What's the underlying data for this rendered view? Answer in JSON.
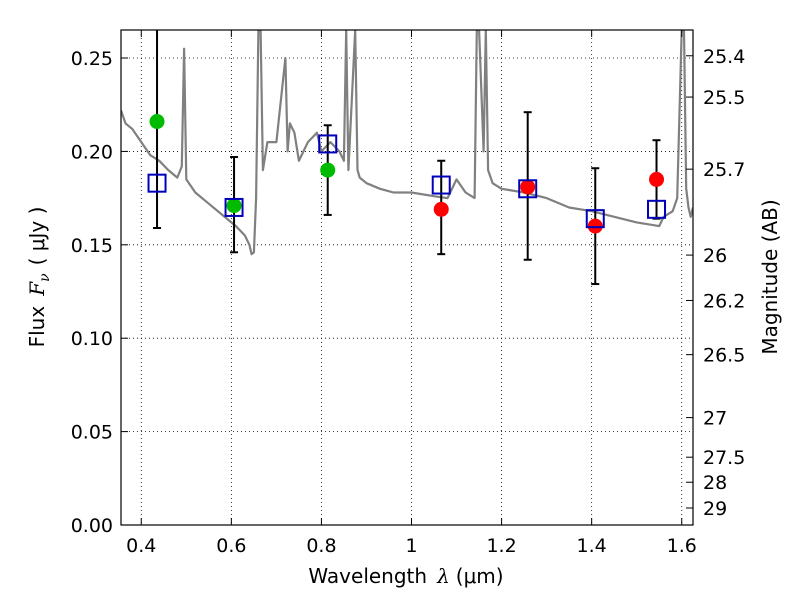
{
  "chart_data": {
    "type": "scatter",
    "xlabel": "Wavelength",
    "xlabel_symbol": "λ",
    "xlabel_unit": "(μm)",
    "ylabel": "Flux",
    "ylabel_symbol": "F",
    "ylabel_subscript": "ν",
    "ylabel_unit": "( μJy )",
    "y2label": "Magnitude (AB)",
    "xlim": [
      0.355,
      1.625
    ],
    "ylim": [
      0.0,
      0.265
    ],
    "grid": true,
    "x_ticks": [
      0.4,
      0.6,
      0.8,
      1.0,
      1.2,
      1.4,
      1.6
    ],
    "x_tick_labels": [
      "0.4",
      "0.6",
      "0.8",
      "1",
      "1.2",
      "1.4",
      "1.6"
    ],
    "y_ticks": [
      0.0,
      0.05,
      0.1,
      0.15,
      0.2,
      0.25
    ],
    "y_tick_labels": [
      "0.00",
      "0.05",
      "0.10",
      "0.15",
      "0.20",
      "0.25"
    ],
    "y2_ticks": [
      {
        "label": "25.4",
        "flux": 0.2512
      },
      {
        "label": "25.5",
        "flux": 0.2291
      },
      {
        "label": "25.7",
        "flux": 0.1905
      },
      {
        "label": "26",
        "flux": 0.1445
      },
      {
        "label": "26.2",
        "flux": 0.1202
      },
      {
        "label": "26.5",
        "flux": 0.0912
      },
      {
        "label": "27",
        "flux": 0.0575
      },
      {
        "label": "27.5",
        "flux": 0.0363
      },
      {
        "label": "28",
        "flux": 0.0229
      },
      {
        "label": "29",
        "flux": 0.0091
      }
    ],
    "series": [
      {
        "marker": "square-open",
        "color": "#0000bb",
        "x": [
          0.435,
          0.606,
          0.814,
          1.066,
          1.258,
          1.408,
          1.544
        ],
        "y": [
          0.183,
          0.17,
          0.204,
          0.182,
          0.18,
          0.164,
          0.169
        ],
        "yerr": [
          [
            0.159,
            0.267
          ],
          [
            0.146,
            0.197
          ],
          [
            0.166,
            0.214
          ],
          [
            0.145,
            0.195
          ],
          [
            0.142,
            0.221
          ],
          [
            0.129,
            0.191
          ],
          [
            0.164,
            0.206
          ]
        ]
      },
      {
        "marker": "circle",
        "color": "#00bb00",
        "x": [
          0.435,
          0.606,
          0.814
        ],
        "y": [
          0.216,
          0.171,
          0.19
        ]
      },
      {
        "marker": "circle",
        "color": "#ff0000",
        "x": [
          1.066,
          1.258,
          1.408,
          1.544
        ],
        "y": [
          0.169,
          0.181,
          0.16,
          0.185
        ]
      },
      {
        "marker": "line",
        "color": "#808080",
        "x": [
          0.355,
          0.365,
          0.38,
          0.4,
          0.42,
          0.44,
          0.46,
          0.48,
          0.49,
          0.495,
          0.5,
          0.52,
          0.55,
          0.58,
          0.61,
          0.63,
          0.64,
          0.645,
          0.65,
          0.655,
          0.66,
          0.665,
          0.67,
          0.68,
          0.7,
          0.72,
          0.725,
          0.73,
          0.74,
          0.75,
          0.77,
          0.79,
          0.8,
          0.82,
          0.84,
          0.85,
          0.855,
          0.86,
          0.875,
          0.88,
          0.885,
          0.9,
          0.93,
          0.96,
          1.0,
          1.05,
          1.08,
          1.1,
          1.12,
          1.14,
          1.145,
          1.15,
          1.16,
          1.165,
          1.17,
          1.18,
          1.2,
          1.25,
          1.3,
          1.35,
          1.4,
          1.45,
          1.5,
          1.55,
          1.56,
          1.58,
          1.59,
          1.6,
          1.605,
          1.61,
          1.615,
          1.62,
          1.625
        ],
        "y": [
          0.222,
          0.215,
          0.212,
          0.205,
          0.198,
          0.195,
          0.19,
          0.186,
          0.192,
          0.255,
          0.185,
          0.178,
          0.172,
          0.166,
          0.16,
          0.155,
          0.15,
          0.145,
          0.146,
          0.175,
          0.265,
          0.265,
          0.19,
          0.205,
          0.205,
          0.25,
          0.2,
          0.215,
          0.21,
          0.195,
          0.205,
          0.21,
          0.2,
          0.205,
          0.2,
          0.195,
          0.265,
          0.19,
          0.265,
          0.19,
          0.186,
          0.183,
          0.18,
          0.178,
          0.178,
          0.176,
          0.175,
          0.185,
          0.178,
          0.175,
          0.265,
          0.265,
          0.2,
          0.265,
          0.19,
          0.183,
          0.18,
          0.178,
          0.175,
          0.17,
          0.168,
          0.165,
          0.162,
          0.16,
          0.165,
          0.168,
          0.175,
          0.265,
          0.265,
          0.18,
          0.17,
          0.165,
          0.17
        ]
      }
    ]
  }
}
